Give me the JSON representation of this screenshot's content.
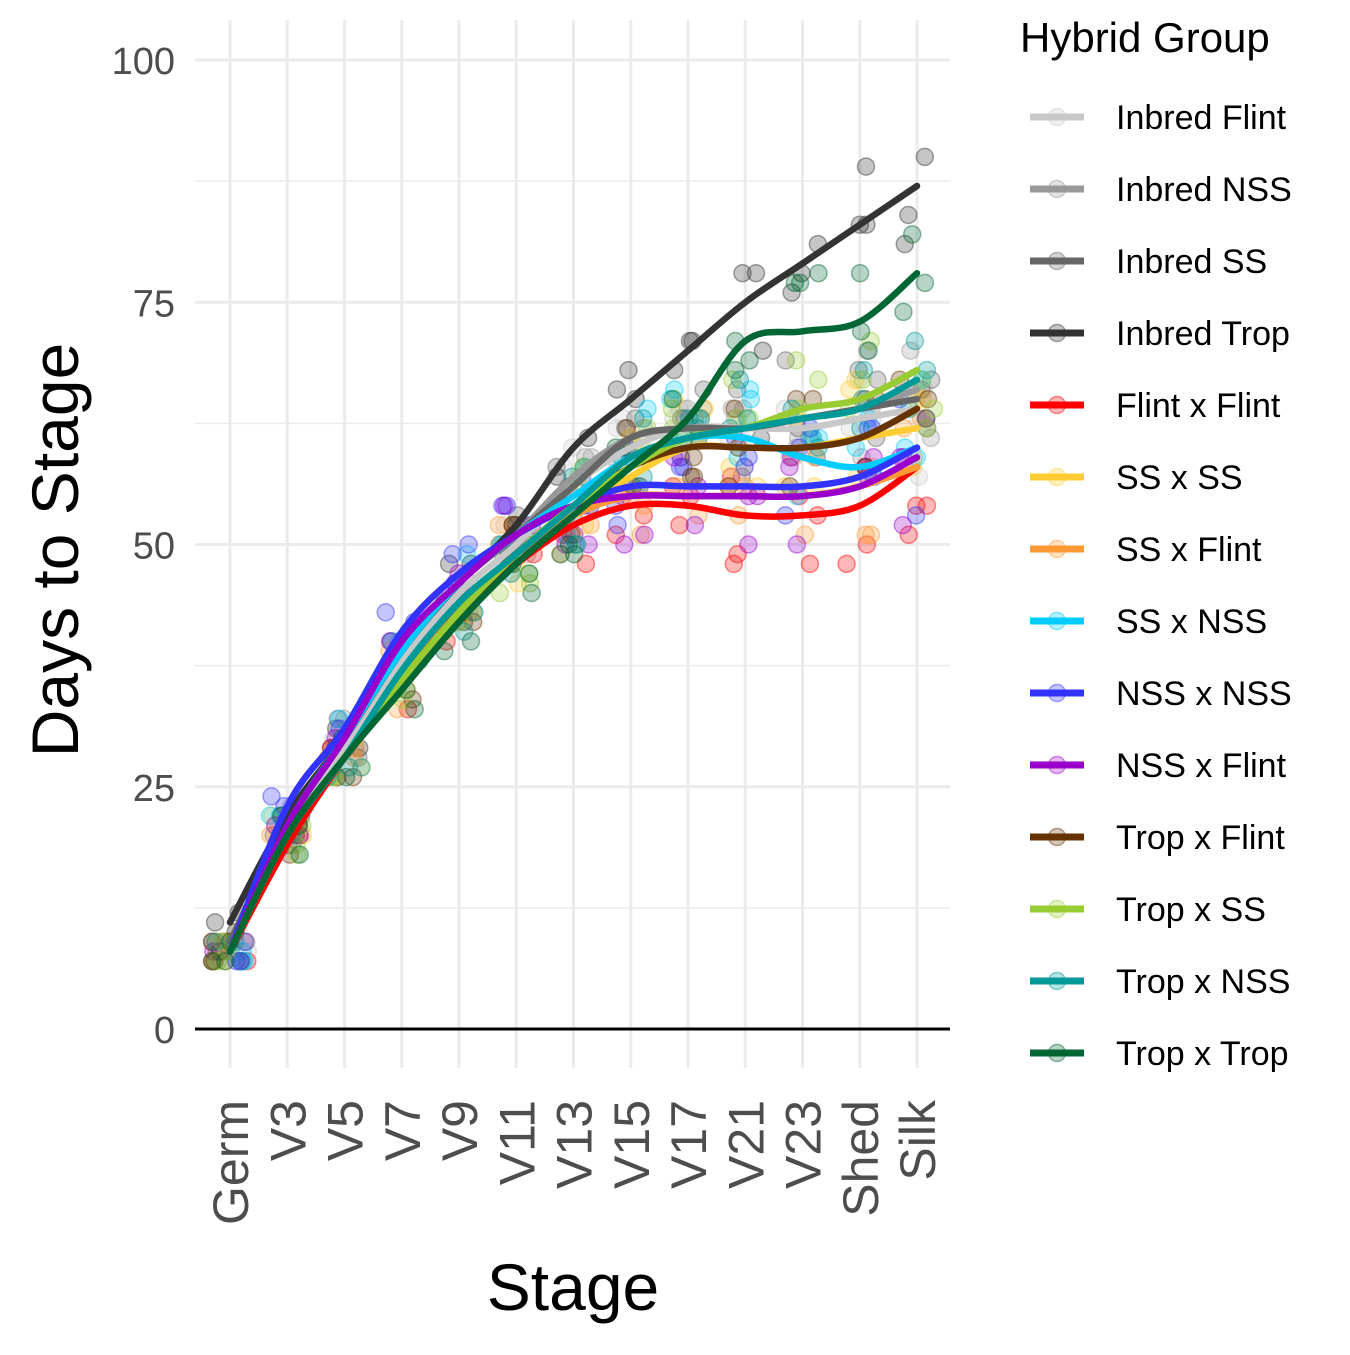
{
  "chart_data": {
    "type": "line",
    "xlabel": "Stage",
    "ylabel": "Days to Stage",
    "categories": [
      "Germ",
      "V3",
      "V5",
      "V7",
      "V9",
      "V11",
      "V13",
      "V15",
      "V17",
      "V21",
      "V23",
      "Shed",
      "Silk"
    ],
    "y_ticks": [
      0,
      25,
      50,
      75,
      100
    ],
    "ylim": [
      -4,
      104
    ],
    "grid": true,
    "legend_title": "Hybrid Group",
    "legend_position": "right",
    "series": [
      {
        "name": "Inbred Flint",
        "color": "#c8c8c8",
        "values": [
          8,
          21,
          29,
          38,
          45,
          50,
          56,
          60,
          62,
          62,
          62,
          63,
          64
        ]
      },
      {
        "name": "Inbred NSS",
        "color": "#999999",
        "values": [
          9,
          21,
          30,
          39,
          46,
          51,
          57,
          61,
          62,
          62,
          63,
          64,
          66
        ]
      },
      {
        "name": "Inbred SS",
        "color": "#666666",
        "values": [
          9,
          21,
          30,
          39,
          46,
          51,
          56,
          61,
          62,
          62,
          63,
          64,
          65
        ]
      },
      {
        "name": "Inbred Trop",
        "color": "#333333",
        "values": [
          11,
          22,
          30,
          39,
          46,
          52,
          60,
          65,
          70,
          75,
          79,
          83,
          87
        ]
      },
      {
        "name": "Flint x Flint",
        "color": "#ff0000",
        "values": [
          8,
          19,
          28,
          36,
          43,
          48,
          52,
          54,
          54,
          53,
          53,
          54,
          58
        ]
      },
      {
        "name": "SS x SS",
        "color": "#ffcc33",
        "values": [
          8,
          20,
          28,
          36,
          43,
          49,
          53,
          57,
          60,
          60,
          60,
          61,
          62
        ]
      },
      {
        "name": "SS x Flint",
        "color": "#ff9933",
        "values": [
          8,
          20,
          28,
          36,
          43,
          49,
          53,
          55,
          55,
          55,
          55,
          56,
          58
        ]
      },
      {
        "name": "SS x NSS",
        "color": "#00ccff",
        "values": [
          8,
          21,
          30,
          39,
          46,
          51,
          55,
          59,
          61,
          61,
          59,
          58,
          60
        ]
      },
      {
        "name": "NSS x NSS",
        "color": "#3333ff",
        "values": [
          8,
          23,
          31,
          41,
          47,
          51,
          54,
          56,
          56,
          56,
          56,
          57,
          60
        ]
      },
      {
        "name": "NSS x Flint",
        "color": "#9900cc",
        "values": [
          8,
          21,
          30,
          40,
          46,
          51,
          54,
          55,
          55,
          55,
          55,
          56,
          59
        ]
      },
      {
        "name": "Trop x Flint",
        "color": "#663300",
        "values": [
          8,
          20,
          28,
          36,
          43,
          49,
          54,
          58,
          60,
          60,
          60,
          61,
          64
        ]
      },
      {
        "name": "Trop x SS",
        "color": "#99cc33",
        "values": [
          8,
          20,
          28,
          36,
          43,
          49,
          54,
          58,
          61,
          62,
          64,
          65,
          68
        ]
      },
      {
        "name": "Trop x NSS",
        "color": "#009999",
        "values": [
          8,
          20,
          28,
          37,
          44,
          49,
          54,
          59,
          61,
          62,
          63,
          64,
          67
        ]
      },
      {
        "name": "Trop x Trop",
        "color": "#006633",
        "values": [
          8,
          20,
          28,
          35,
          42,
          48,
          53,
          58,
          63,
          71,
          72,
          73,
          78
        ]
      }
    ]
  }
}
